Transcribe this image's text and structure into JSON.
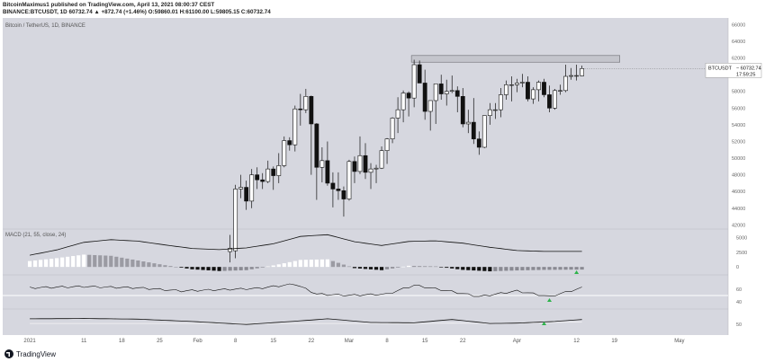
{
  "header": {
    "author_line": "BitcoinMaximus1 published on TradingView.com, April 13, 2021 08:00:37 CEST",
    "ticker_line": "BINANCE:BTCUSDT, 1D 60732.74 ▲ +872.74 (+1.46%) O:59860.01 H:61100.00 L:59805.15 C:60732.74"
  },
  "footer": {
    "brand": "TradingView"
  },
  "colors": {
    "pane_bg": "#d6d7df",
    "candle_up": "#ffffff",
    "candle_down": "#111111",
    "price_box": "#ffffff",
    "resistance_fill": "#c4c5cc",
    "signal_marker": "#2db34a"
  },
  "icons": {
    "footer_logo": "tradingview-logo-icon",
    "signal": "triangle-up-icon"
  },
  "chart_data": [
    {
      "type": "candlestick",
      "pane": "price",
      "title": "Bitcoin / TetherUS, 1D, BINANCE",
      "symbol_tag": "BTCUSDT",
      "last_price": "60732.74",
      "countdown": "17:59:25",
      "x_tick_labels": [
        "2021",
        "11",
        "18",
        "25",
        "Feb",
        "8",
        "15",
        "22",
        "Mar",
        "8",
        "15",
        "22",
        "Apr",
        "12",
        "19",
        "May"
      ],
      "y_tick_labels": [
        "66000",
        "64000",
        "62000",
        "60000",
        "58000",
        "56000",
        "54000",
        "52000",
        "50000",
        "48000",
        "46000",
        "44000",
        "42000"
      ],
      "ylim": [
        41500,
        66800
      ],
      "resistance_zone": [
        61500,
        62300
      ],
      "candles": [
        {
          "date": "2021-02-07",
          "open": 38800,
          "high": 40800,
          "low": 37500,
          "close": 39200
        },
        {
          "date": "2021-02-08",
          "open": 38900,
          "high": 46800,
          "low": 38000,
          "close": 46300
        },
        {
          "date": "2021-02-09",
          "open": 46300,
          "high": 48000,
          "low": 45200,
          "close": 46500
        },
        {
          "date": "2021-02-10",
          "open": 46500,
          "high": 47300,
          "low": 43800,
          "close": 44850
        },
        {
          "date": "2021-02-11",
          "open": 44850,
          "high": 48700,
          "low": 44000,
          "close": 48000
        },
        {
          "date": "2021-02-12",
          "open": 48000,
          "high": 48900,
          "low": 46300,
          "close": 47400
        },
        {
          "date": "2021-02-13",
          "open": 47400,
          "high": 48200,
          "low": 46300,
          "close": 47200
        },
        {
          "date": "2021-02-14",
          "open": 47200,
          "high": 49700,
          "low": 47000,
          "close": 48700
        },
        {
          "date": "2021-02-15",
          "open": 48700,
          "high": 49000,
          "low": 46200,
          "close": 47900
        },
        {
          "date": "2021-02-16",
          "open": 47900,
          "high": 50600,
          "low": 47000,
          "close": 49100
        },
        {
          "date": "2021-02-17",
          "open": 49100,
          "high": 52600,
          "low": 48900,
          "close": 52100
        },
        {
          "date": "2021-02-18",
          "open": 52100,
          "high": 52500,
          "low": 50900,
          "close": 51600
        },
        {
          "date": "2021-02-19",
          "open": 51600,
          "high": 56300,
          "low": 50800,
          "close": 55900
        },
        {
          "date": "2021-02-20",
          "open": 55900,
          "high": 57700,
          "low": 53900,
          "close": 55800
        },
        {
          "date": "2021-02-21",
          "open": 55800,
          "high": 58300,
          "low": 55400,
          "close": 57400
        },
        {
          "date": "2021-02-22",
          "open": 57400,
          "high": 57500,
          "low": 48000,
          "close": 54100
        },
        {
          "date": "2021-02-23",
          "open": 54100,
          "high": 54200,
          "low": 45000,
          "close": 48900
        },
        {
          "date": "2021-02-24",
          "open": 48900,
          "high": 51300,
          "low": 47100,
          "close": 49700
        },
        {
          "date": "2021-02-25",
          "open": 49700,
          "high": 52000,
          "low": 46700,
          "close": 47000
        },
        {
          "date": "2021-02-26",
          "open": 47000,
          "high": 48300,
          "low": 44100,
          "close": 46300
        },
        {
          "date": "2021-02-27",
          "open": 46300,
          "high": 48300,
          "low": 45000,
          "close": 46100
        },
        {
          "date": "2021-02-28",
          "open": 46100,
          "high": 46600,
          "low": 43000,
          "close": 45100
        },
        {
          "date": "2021-03-01",
          "open": 45100,
          "high": 49800,
          "low": 44900,
          "close": 49600
        },
        {
          "date": "2021-03-02",
          "open": 49600,
          "high": 50200,
          "low": 47000,
          "close": 48400
        },
        {
          "date": "2021-03-03",
          "open": 48400,
          "high": 52600,
          "low": 48100,
          "close": 50300
        },
        {
          "date": "2021-03-04",
          "open": 50300,
          "high": 51800,
          "low": 47500,
          "close": 48300
        },
        {
          "date": "2021-03-05",
          "open": 48300,
          "high": 49400,
          "low": 46300,
          "close": 48700
        },
        {
          "date": "2021-03-06",
          "open": 48700,
          "high": 49200,
          "low": 47000,
          "close": 48800
        },
        {
          "date": "2021-03-07",
          "open": 48800,
          "high": 51400,
          "low": 48700,
          "close": 50900
        },
        {
          "date": "2021-03-08",
          "open": 50900,
          "high": 52400,
          "low": 49300,
          "close": 52300
        },
        {
          "date": "2021-03-09",
          "open": 52300,
          "high": 54900,
          "low": 51800,
          "close": 54800
        },
        {
          "date": "2021-03-10",
          "open": 54800,
          "high": 57300,
          "low": 53000,
          "close": 55800
        },
        {
          "date": "2021-03-11",
          "open": 55800,
          "high": 58100,
          "low": 54300,
          "close": 57800
        },
        {
          "date": "2021-03-12",
          "open": 57800,
          "high": 58000,
          "low": 55000,
          "close": 57200
        },
        {
          "date": "2021-03-13",
          "open": 57200,
          "high": 61800,
          "low": 56100,
          "close": 61200
        },
        {
          "date": "2021-03-14",
          "open": 61200,
          "high": 61700,
          "low": 59000,
          "close": 59000
        },
        {
          "date": "2021-03-15",
          "open": 59000,
          "high": 60600,
          "low": 54600,
          "close": 55600
        },
        {
          "date": "2021-03-16",
          "open": 55600,
          "high": 56900,
          "low": 53300,
          "close": 56900
        },
        {
          "date": "2021-03-17",
          "open": 56900,
          "high": 58900,
          "low": 54100,
          "close": 58900
        },
        {
          "date": "2021-03-18",
          "open": 58900,
          "high": 60000,
          "low": 57000,
          "close": 57700
        },
        {
          "date": "2021-03-19",
          "open": 57700,
          "high": 59400,
          "low": 56300,
          "close": 58000
        },
        {
          "date": "2021-03-20",
          "open": 58000,
          "high": 59900,
          "low": 57800,
          "close": 58100
        },
        {
          "date": "2021-03-21",
          "open": 58100,
          "high": 58600,
          "low": 55500,
          "close": 57400
        },
        {
          "date": "2021-03-22",
          "open": 57400,
          "high": 58400,
          "low": 53700,
          "close": 54100
        },
        {
          "date": "2021-03-23",
          "open": 54100,
          "high": 55800,
          "low": 53000,
          "close": 54300
        },
        {
          "date": "2021-03-24",
          "open": 54300,
          "high": 57200,
          "low": 51700,
          "close": 52300
        },
        {
          "date": "2021-03-25",
          "open": 52300,
          "high": 53200,
          "low": 50400,
          "close": 51300
        },
        {
          "date": "2021-03-26",
          "open": 51300,
          "high": 55100,
          "low": 51200,
          "close": 55100
        },
        {
          "date": "2021-03-27",
          "open": 55100,
          "high": 56600,
          "low": 54000,
          "close": 55800
        },
        {
          "date": "2021-03-28",
          "open": 55800,
          "high": 56600,
          "low": 54700,
          "close": 55800
        },
        {
          "date": "2021-03-29",
          "open": 55800,
          "high": 58400,
          "low": 54900,
          "close": 57600
        },
        {
          "date": "2021-03-30",
          "open": 57600,
          "high": 59300,
          "low": 57000,
          "close": 58800
        },
        {
          "date": "2021-03-31",
          "open": 58800,
          "high": 59800,
          "low": 56800,
          "close": 58800
        },
        {
          "date": "2021-04-01",
          "open": 58800,
          "high": 59500,
          "low": 57900,
          "close": 59000
        },
        {
          "date": "2021-04-02",
          "open": 59000,
          "high": 60100,
          "low": 58500,
          "close": 59100
        },
        {
          "date": "2021-04-03",
          "open": 59100,
          "high": 59800,
          "low": 56800,
          "close": 57100
        },
        {
          "date": "2021-04-04",
          "open": 57100,
          "high": 58500,
          "low": 56500,
          "close": 58200
        },
        {
          "date": "2021-04-05",
          "open": 58200,
          "high": 59300,
          "low": 56800,
          "close": 59100
        },
        {
          "date": "2021-04-06",
          "open": 59100,
          "high": 59500,
          "low": 57300,
          "close": 57600
        },
        {
          "date": "2021-04-07",
          "open": 57600,
          "high": 58700,
          "low": 55500,
          "close": 56000
        },
        {
          "date": "2021-04-08",
          "open": 56000,
          "high": 58300,
          "low": 55800,
          "close": 58100
        },
        {
          "date": "2021-04-09",
          "open": 58100,
          "high": 58800,
          "low": 57600,
          "close": 58100
        },
        {
          "date": "2021-04-10",
          "open": 58100,
          "high": 61200,
          "low": 57900,
          "close": 59800
        },
        {
          "date": "2021-04-11",
          "open": 59800,
          "high": 60800,
          "low": 59400,
          "close": 59900
        },
        {
          "date": "2021-04-12",
          "open": 59900,
          "high": 61200,
          "low": 59300,
          "close": 59900
        },
        {
          "date": "2021-04-13",
          "open": 59860,
          "high": 61100,
          "low": 59805,
          "close": 60733
        }
      ]
    },
    {
      "type": "area",
      "pane": "macd",
      "title": "MACD (21, 55, close, 24)",
      "y_tick_labels": [
        "5000",
        "2500",
        "0"
      ],
      "ylim": [
        -1200,
        6000
      ],
      "x": [
        "2021-01-01",
        "2021-01-06",
        "2021-01-11",
        "2021-01-16",
        "2021-01-21",
        "2021-01-26",
        "2021-01-31",
        "2021-02-05",
        "2021-02-10",
        "2021-02-15",
        "2021-02-20",
        "2021-02-25",
        "2021-03-02",
        "2021-03-07",
        "2021-03-12",
        "2021-03-17",
        "2021-03-22",
        "2021-03-27",
        "2021-04-01",
        "2021-04-06",
        "2021-04-13"
      ],
      "macd_line": [
        2000,
        2900,
        4200,
        4650,
        4400,
        3750,
        3150,
        2950,
        3250,
        3950,
        5200,
        5500,
        4300,
        3650,
        4350,
        4450,
        4050,
        3350,
        2800,
        2650,
        2650
      ],
      "histogram": [
        1000,
        1500,
        2100,
        1900,
        1100,
        300,
        -400,
        -700,
        -550,
        250,
        1200,
        1300,
        -200,
        -550,
        200,
        100,
        -500,
        -750,
        -600,
        -500,
        -450
      ]
    },
    {
      "type": "line",
      "pane": "rsi",
      "y_tick_labels": [
        "60",
        "40"
      ],
      "ylim": [
        30,
        80
      ],
      "band_level": 50,
      "x": [
        "2021-01-01",
        "2021-01-11",
        "2021-01-21",
        "2021-01-29",
        "2021-02-05",
        "2021-02-12",
        "2021-02-19",
        "2021-02-23",
        "2021-03-01",
        "2021-03-08",
        "2021-03-13",
        "2021-03-20",
        "2021-03-25",
        "2021-04-01",
        "2021-04-07",
        "2021-04-13"
      ],
      "values": [
        62,
        64,
        62,
        57,
        59,
        61,
        68,
        52,
        50,
        52,
        66,
        56,
        48,
        57,
        48,
        62
      ]
    },
    {
      "type": "line",
      "pane": "oscillator",
      "y_tick_labels": [
        "50"
      ],
      "ylim": [
        20,
        90
      ],
      "x": [
        "2021-01-01",
        "2021-01-11",
        "2021-01-21",
        "2021-01-31",
        "2021-02-10",
        "2021-02-20",
        "2021-02-25",
        "2021-03-05",
        "2021-03-13",
        "2021-03-20",
        "2021-03-27",
        "2021-04-01",
        "2021-04-08",
        "2021-04-13"
      ],
      "values": [
        66,
        67,
        65,
        58,
        49,
        60,
        66,
        55,
        54,
        64,
        52,
        53,
        58,
        64
      ],
      "signal_values": [
        52,
        52,
        52,
        52,
        52,
        52,
        52,
        52,
        52,
        53,
        52,
        53,
        55,
        57
      ]
    }
  ]
}
